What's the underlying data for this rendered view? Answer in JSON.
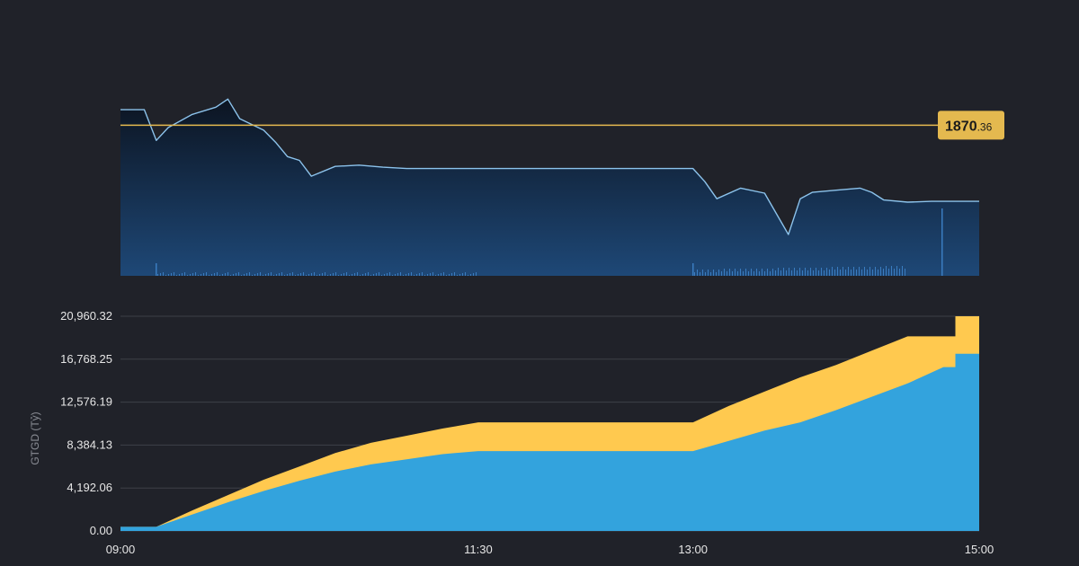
{
  "chart_data": [
    {
      "type": "line",
      "x": [
        "09:00",
        "09:10",
        "09:15",
        "09:20",
        "09:30",
        "09:40",
        "09:45",
        "09:50",
        "10:00",
        "10:05",
        "10:10",
        "10:15",
        "10:20",
        "10:30",
        "10:40",
        "10:50",
        "11:00",
        "11:10",
        "11:20",
        "11:30",
        "12:00",
        "13:00",
        "13:05",
        "13:10",
        "13:20",
        "13:30",
        "13:40",
        "13:45",
        "13:50",
        "14:00",
        "14:10",
        "14:15",
        "14:20",
        "14:30",
        "14:40",
        "14:50",
        "15:00"
      ],
      "values": [
        1874.0,
        1874.0,
        1866.8,
        1869.8,
        1872.9,
        1874.6,
        1876.5,
        1871.9,
        1869.2,
        1866.4,
        1863.0,
        1862.1,
        1858.4,
        1860.7,
        1861.0,
        1860.5,
        1860.2,
        1860.2,
        1860.2,
        1860.2,
        1860.2,
        1860.2,
        1857.1,
        1853.1,
        1855.6,
        1854.4,
        1844.7,
        1853.1,
        1854.6,
        1855.1,
        1855.6,
        1854.6,
        1852.8,
        1852.3,
        1852.5,
        1852.5,
        1852.5
      ],
      "reference": {
        "value": 1870.36,
        "label_main": "1870",
        "label_dec": ".36",
        "color": "#e4b94f"
      },
      "volume_spikes": [
        0.03,
        0.045,
        0.35
      ],
      "colors": {
        "line": "#8cc3ec",
        "area_top": "#0c1421",
        "area_bottom": "#1e4877",
        "volume": "#3a7cc0"
      }
    },
    {
      "type": "area",
      "ylabel": "GTGD (Tỷ)",
      "y_ticks": [
        "0.00",
        "4,192.06",
        "8,384.13",
        "12,576.19",
        "16,768.25",
        "20,960.32"
      ],
      "ylim": [
        0,
        20960.32
      ],
      "x_ticks": [
        "09:00",
        "11:30",
        "13:00",
        "15:00"
      ],
      "series": [
        {
          "color": "#ffc94f",
          "x": [
            "09:00",
            "09:15",
            "09:30",
            "09:45",
            "10:00",
            "10:15",
            "10:30",
            "10:45",
            "11:00",
            "11:15",
            "11:30",
            "12:00",
            "13:00",
            "13:15",
            "13:30",
            "13:45",
            "14:00",
            "14:15",
            "14:30",
            "14:45",
            "14:50",
            "14:50",
            "15:00"
          ],
          "values": [
            400,
            400,
            2000,
            3500,
            5000,
            6300,
            7600,
            8600,
            9300,
            10000,
            10600,
            10600,
            10600,
            12200,
            13600,
            15000,
            16200,
            17600,
            19000,
            19000,
            19000,
            20960,
            20960
          ]
        },
        {
          "color": "#33a3dd",
          "x": [
            "09:00",
            "09:15",
            "09:30",
            "09:45",
            "10:00",
            "10:15",
            "10:30",
            "10:45",
            "11:00",
            "11:15",
            "11:30",
            "12:00",
            "13:00",
            "13:15",
            "13:30",
            "13:45",
            "14:00",
            "14:15",
            "14:30",
            "14:45",
            "14:50",
            "14:50",
            "15:00"
          ],
          "values": [
            400,
            400,
            1600,
            2800,
            3900,
            4900,
            5800,
            6500,
            7000,
            7500,
            7800,
            7800,
            7800,
            8800,
            9800,
            10600,
            11800,
            13100,
            14400,
            16000,
            16000,
            17300,
            17300
          ]
        }
      ]
    }
  ]
}
